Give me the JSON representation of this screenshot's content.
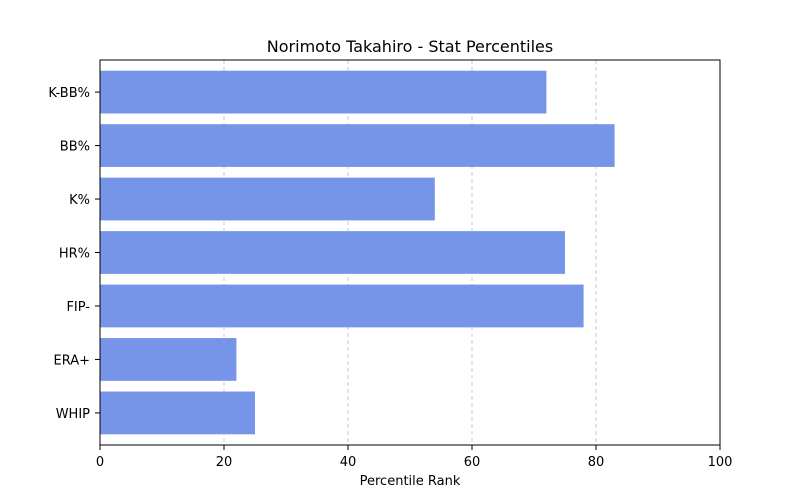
{
  "chart_data": {
    "type": "bar",
    "orientation": "horizontal",
    "title": "Norimoto Takahiro - Stat Percentiles",
    "xlabel": "Percentile Rank",
    "ylabel": "",
    "xlim": [
      0,
      100
    ],
    "xticks": [
      0,
      20,
      40,
      60,
      80,
      100
    ],
    "grid": "x-dashed",
    "bar_color": "#7795e8",
    "categories": [
      "K-BB%",
      "BB%",
      "K%",
      "HR%",
      "FIP-",
      "ERA+",
      "WHIP"
    ],
    "values": [
      72,
      83,
      54,
      75,
      78,
      22,
      25
    ]
  }
}
